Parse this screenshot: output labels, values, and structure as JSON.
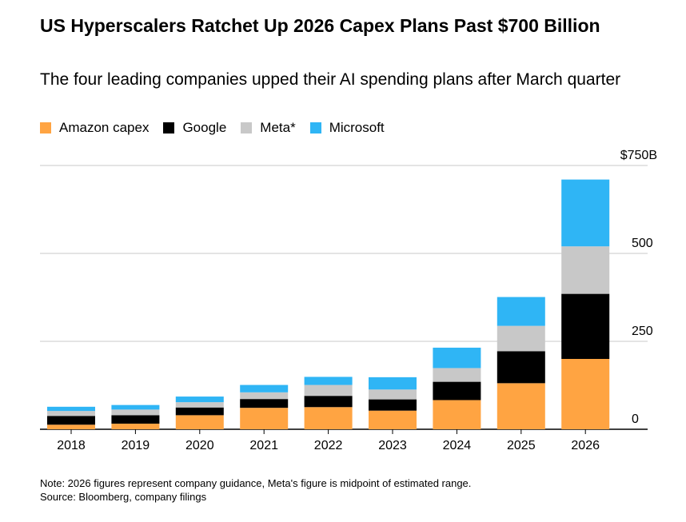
{
  "header": {
    "title": "US Hyperscalers Ratchet Up 2026 Capex Plans Past $700 Billion",
    "subtitle": "The four leading companies upped their AI spending plans after March quarter"
  },
  "footer": {
    "note": "Note: 2026 figures represent company guidance, Meta's figure is midpoint of estimated range.",
    "source": "Source: Bloomberg, company filings"
  },
  "chart_data": {
    "type": "bar",
    "stacked": true,
    "title": "US Hyperscalers Ratchet Up 2026 Capex Plans Past $700 Billion",
    "subtitle": "The four leading companies upped their AI spending plans after March quarter",
    "categories": [
      "2018",
      "2019",
      "2020",
      "2021",
      "2022",
      "2023",
      "2024",
      "2025",
      "2026"
    ],
    "series": [
      {
        "name": "Amazon capex",
        "color": "#ffa442",
        "values": [
          13,
          16,
          40,
          61,
          63,
          53,
          83,
          131,
          200
        ]
      },
      {
        "name": "Google",
        "color": "#000000",
        "values": [
          25,
          24,
          22,
          25,
          32,
          32,
          52,
          91,
          185
        ]
      },
      {
        "name": "Meta*",
        "color": "#c8c8c8",
        "values": [
          14,
          16,
          15,
          19,
          31,
          28,
          39,
          72,
          135
        ]
      },
      {
        "name": "Microsoft",
        "color": "#2fb5f5",
        "values": [
          12,
          13,
          16,
          21,
          23,
          35,
          58,
          82,
          190
        ]
      }
    ],
    "ylim": [
      0,
      750
    ],
    "yticks": [
      0,
      250,
      500,
      750
    ],
    "ytick_labels": [
      "0",
      "250",
      "500",
      "$750B"
    ],
    "y_axis_side": "right",
    "grid": true,
    "legend_position": "top-left"
  }
}
